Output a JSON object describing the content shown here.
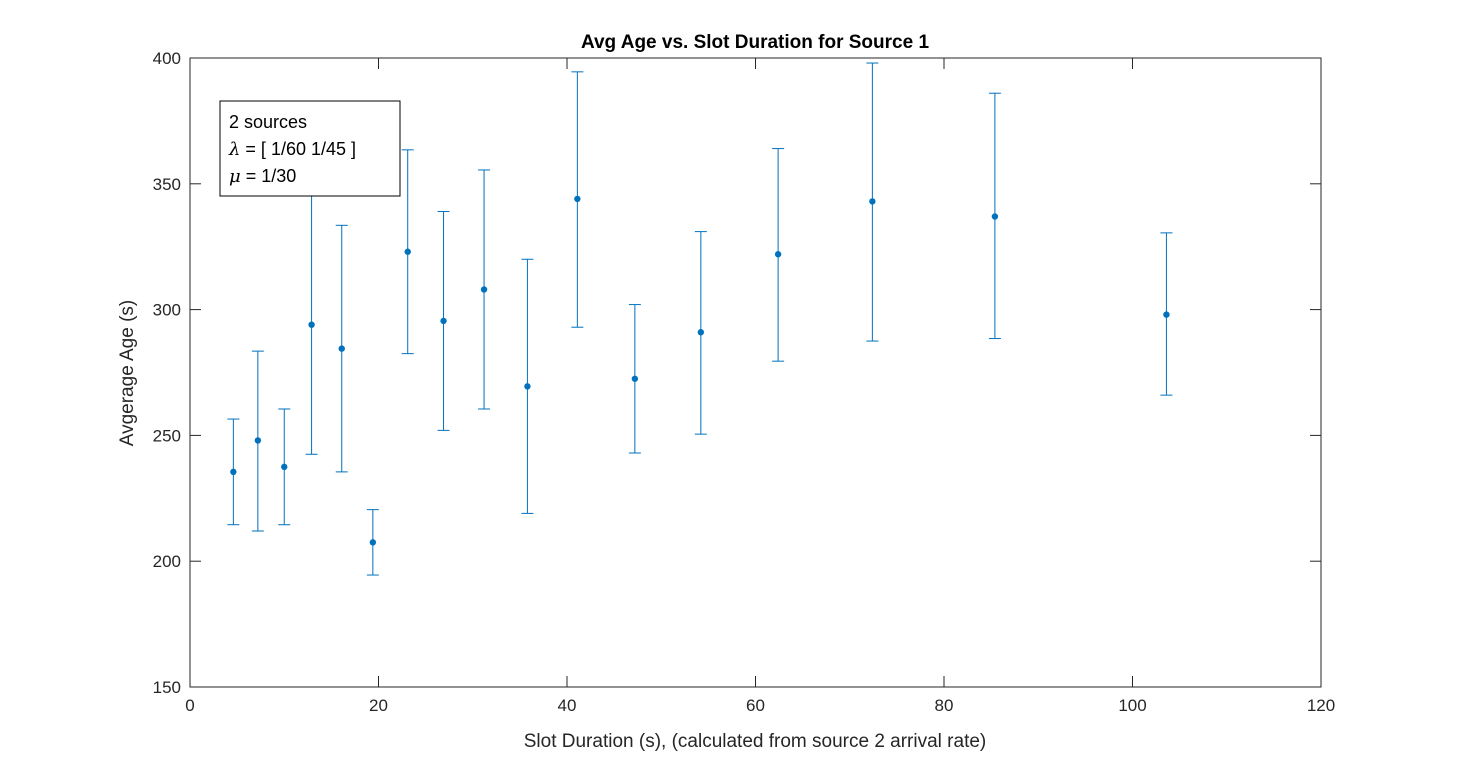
{
  "chart_data": {
    "type": "scatter",
    "title": "Avg Age vs. Slot Duration for Source 1",
    "xlabel": "Slot Duration (s), (calculated from source 2 arrival rate)",
    "ylabel": "Avgerage Age (s)",
    "xlim": [
      0,
      120
    ],
    "ylim": [
      150,
      400
    ],
    "xticks": [
      "0",
      "20",
      "40",
      "60",
      "80",
      "100",
      "120"
    ],
    "yticks": [
      "150",
      "200",
      "250",
      "300",
      "350",
      "400"
    ],
    "grid": false,
    "color": "#0072BD",
    "points": [
      {
        "x": 4.6,
        "y": 235.5,
        "lo": 214.5,
        "hi": 256.5
      },
      {
        "x": 7.2,
        "y": 248,
        "lo": 212,
        "hi": 283.5
      },
      {
        "x": 10.0,
        "y": 237.5,
        "lo": 214.5,
        "hi": 260.5
      },
      {
        "x": 12.9,
        "y": 294,
        "lo": 242.5,
        "hi": 345.5
      },
      {
        "x": 16.1,
        "y": 284.5,
        "lo": 235.5,
        "hi": 333.5
      },
      {
        "x": 19.4,
        "y": 207.5,
        "lo": 194.5,
        "hi": 220.5
      },
      {
        "x": 23.1,
        "y": 323,
        "lo": 282.5,
        "hi": 363.5
      },
      {
        "x": 26.9,
        "y": 295.5,
        "lo": 252,
        "hi": 339
      },
      {
        "x": 31.2,
        "y": 308,
        "lo": 260.5,
        "hi": 355.5
      },
      {
        "x": 35.8,
        "y": 269.5,
        "lo": 219,
        "hi": 320
      },
      {
        "x": 41.1,
        "y": 344,
        "lo": 293,
        "hi": 394.5
      },
      {
        "x": 47.2,
        "y": 272.5,
        "lo": 243,
        "hi": 302
      },
      {
        "x": 54.2,
        "y": 291,
        "lo": 250.5,
        "hi": 331
      },
      {
        "x": 62.4,
        "y": 322,
        "lo": 279.5,
        "hi": 364
      },
      {
        "x": 72.4,
        "y": 343,
        "lo": 287.5,
        "hi": 398
      },
      {
        "x": 85.4,
        "y": 337,
        "lo": 288.5,
        "hi": 386
      },
      {
        "x": 103.6,
        "y": 298,
        "lo": 266,
        "hi": 330.5
      }
    ],
    "annotation": {
      "line1": "2 sources",
      "lambda_symbol": "λ",
      "lambda_rest": " = [ 1/60 1/45 ]",
      "mu_symbol": "μ",
      "mu_rest": " = 1/30"
    }
  }
}
